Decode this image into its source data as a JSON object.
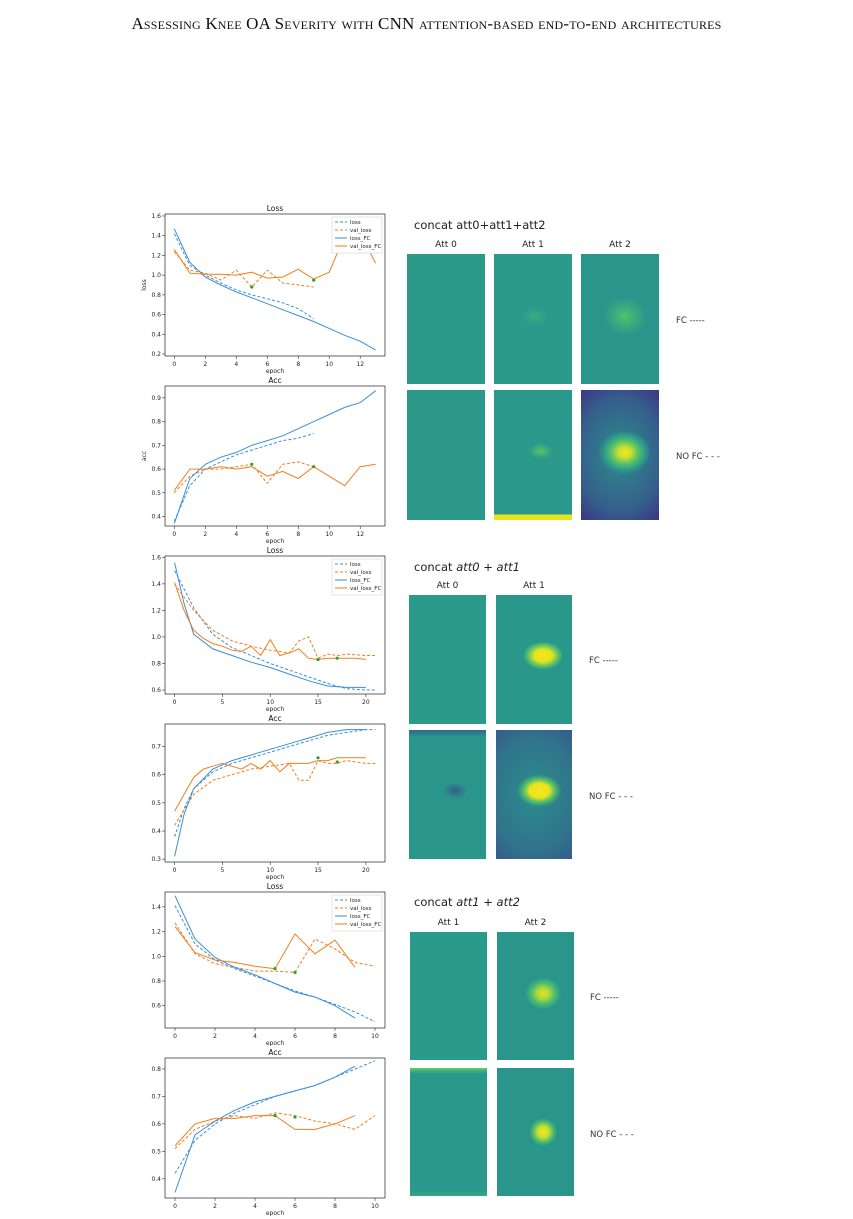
{
  "header": "Assessing Knee OA Severity with CNN attention-based end-to-end architectures",
  "colors": {
    "blue": "#3a8fd9",
    "orange": "#f07f1e",
    "green": "#2ca02c",
    "heat_base": "#2a9a8b",
    "heat_yellow": "#f4e61e",
    "heat_dark": "#3b3a86"
  },
  "groups": [
    {
      "heading_prefix": "concat ",
      "heading_main": "att0+att1+att2",
      "heading_italic": false,
      "col_headers": [
        "Att 0",
        "Att 1",
        "Att 2"
      ],
      "row_labels": [
        "FC -----",
        "NO FC - - -"
      ]
    },
    {
      "heading_prefix": "concat ",
      "heading_main": "att0 + att1",
      "heading_italic": true,
      "col_headers": [
        "Att 0",
        "Att 1"
      ],
      "row_labels": [
        "FC -----",
        "NO FC - - -"
      ]
    },
    {
      "heading_prefix": "concat ",
      "heading_main": "att1 + att2",
      "heading_italic": true,
      "col_headers": [
        "Att 1",
        "Att 2"
      ],
      "row_labels": [
        "FC -----",
        "NO FC - - -"
      ]
    }
  ],
  "chart_data": [
    {
      "type": "line",
      "title": "Loss",
      "xlabel": "epoch",
      "ylabel": "loss",
      "xlim": [
        -0.6,
        13.6
      ],
      "ylim": [
        0.18,
        1.62
      ],
      "xticks": [
        0,
        2,
        4,
        6,
        8,
        10,
        12
      ],
      "yticks": [
        0.2,
        0.4,
        0.6,
        0.8,
        1.0,
        1.2,
        1.4,
        1.6
      ],
      "legend": [
        "loss",
        "val_loss",
        "loss_FC",
        "val_loss_FC"
      ],
      "legend_position": "top-right",
      "series": [
        {
          "name": "loss",
          "dashed": true,
          "color": "blue",
          "x": [
            0,
            1,
            2,
            3,
            4,
            5,
            6,
            7,
            8,
            9
          ],
          "y": [
            1.42,
            1.1,
            1.0,
            0.92,
            0.85,
            0.8,
            0.76,
            0.72,
            0.66,
            0.56
          ]
        },
        {
          "name": "val_loss",
          "dashed": true,
          "color": "orange",
          "x": [
            0,
            1,
            2,
            3,
            4,
            5,
            6,
            7,
            8,
            9
          ],
          "y": [
            1.24,
            1.05,
            1.02,
            0.95,
            1.05,
            0.88,
            1.05,
            0.92,
            0.9,
            0.88
          ]
        },
        {
          "name": "loss_FC",
          "dashed": false,
          "color": "blue",
          "x": [
            0,
            1,
            2,
            3,
            4,
            5,
            6,
            7,
            8,
            9,
            10,
            11,
            12,
            13
          ],
          "y": [
            1.47,
            1.13,
            0.98,
            0.9,
            0.83,
            0.77,
            0.71,
            0.65,
            0.59,
            0.53,
            0.46,
            0.39,
            0.33,
            0.24
          ]
        },
        {
          "name": "val_loss_FC",
          "dashed": false,
          "color": "orange",
          "x": [
            0,
            1,
            2,
            3,
            4,
            5,
            6,
            7,
            8,
            9,
            10,
            11,
            12,
            13
          ],
          "y": [
            1.26,
            1.02,
            1.01,
            1.01,
            1.0,
            1.03,
            0.97,
            0.98,
            1.06,
            0.96,
            1.03,
            1.4,
            1.42,
            1.12
          ]
        }
      ],
      "markers": [
        {
          "x": 5,
          "y": 0.88
        },
        {
          "x": 9,
          "y": 0.95
        }
      ]
    },
    {
      "type": "line",
      "title": "Acc",
      "xlabel": "epoch",
      "ylabel": "acc",
      "xlim": [
        -0.6,
        13.6
      ],
      "ylim": [
        0.36,
        0.95
      ],
      "xticks": [
        0,
        2,
        4,
        6,
        8,
        10,
        12
      ],
      "yticks": [
        0.4,
        0.5,
        0.6,
        0.7,
        0.8,
        0.9
      ],
      "series": [
        {
          "name": "loss",
          "dashed": true,
          "color": "blue",
          "x": [
            0,
            1,
            2,
            3,
            4,
            5,
            6,
            7,
            8,
            9
          ],
          "y": [
            0.38,
            0.53,
            0.6,
            0.63,
            0.66,
            0.68,
            0.7,
            0.72,
            0.73,
            0.75
          ]
        },
        {
          "name": "val_loss",
          "dashed": true,
          "color": "orange",
          "x": [
            0,
            1,
            2,
            3,
            4,
            5,
            6,
            7,
            8,
            9
          ],
          "y": [
            0.5,
            0.57,
            0.6,
            0.6,
            0.61,
            0.62,
            0.54,
            0.62,
            0.63,
            0.61
          ]
        },
        {
          "name": "loss_FC",
          "dashed": false,
          "color": "blue",
          "x": [
            0,
            1,
            2,
            3,
            4,
            5,
            6,
            7,
            8,
            9,
            10,
            11,
            12,
            13
          ],
          "y": [
            0.37,
            0.56,
            0.62,
            0.65,
            0.67,
            0.7,
            0.72,
            0.74,
            0.77,
            0.8,
            0.83,
            0.86,
            0.88,
            0.93
          ]
        },
        {
          "name": "val_loss_FC",
          "dashed": false,
          "color": "orange",
          "x": [
            0,
            1,
            2,
            3,
            4,
            5,
            6,
            7,
            8,
            9,
            10,
            11,
            12,
            13
          ],
          "y": [
            0.51,
            0.6,
            0.6,
            0.61,
            0.6,
            0.61,
            0.57,
            0.59,
            0.56,
            0.61,
            0.57,
            0.53,
            0.61,
            0.62
          ]
        }
      ],
      "markers": [
        {
          "x": 5,
          "y": 0.62
        },
        {
          "x": 9,
          "y": 0.61
        }
      ]
    },
    {
      "type": "line",
      "title": "Loss",
      "xlabel": "epoch",
      "ylabel": "",
      "xlim": [
        -1,
        22
      ],
      "ylim": [
        0.57,
        1.61
      ],
      "xticks": [
        0,
        5,
        10,
        15,
        20
      ],
      "yticks": [
        0.6,
        0.8,
        1.0,
        1.2,
        1.4,
        1.6
      ],
      "legend": [
        "loss",
        "val_loss",
        "loss_FC",
        "val_loss_FC"
      ],
      "legend_position": "top-right",
      "series": [
        {
          "name": "loss",
          "dashed": true,
          "color": "blue",
          "x": [
            0,
            2,
            4,
            6,
            8,
            10,
            12,
            14,
            16,
            18,
            20,
            21
          ],
          "y": [
            1.5,
            1.22,
            1.02,
            0.92,
            0.86,
            0.8,
            0.75,
            0.7,
            0.65,
            0.61,
            0.6,
            0.6
          ]
        },
        {
          "name": "val_loss",
          "dashed": true,
          "color": "orange",
          "x": [
            0,
            2,
            4,
            6,
            8,
            10,
            12,
            13,
            14,
            15,
            16,
            17,
            18,
            20,
            21
          ],
          "y": [
            1.4,
            1.2,
            1.05,
            0.97,
            0.93,
            0.9,
            0.88,
            0.97,
            1.0,
            0.84,
            0.87,
            0.86,
            0.87,
            0.86,
            0.86
          ]
        },
        {
          "name": "loss_FC",
          "dashed": false,
          "color": "blue",
          "x": [
            0,
            1,
            2,
            4,
            6,
            8,
            10,
            12,
            14,
            16,
            18,
            20
          ],
          "y": [
            1.56,
            1.25,
            1.02,
            0.91,
            0.86,
            0.81,
            0.77,
            0.72,
            0.67,
            0.63,
            0.62,
            0.62
          ]
        },
        {
          "name": "val_loss_FC",
          "dashed": false,
          "color": "orange",
          "x": [
            0,
            1,
            2,
            3,
            4,
            5,
            6,
            7,
            8,
            9,
            10,
            11,
            12,
            13,
            14,
            15,
            16,
            17,
            18,
            19,
            20
          ],
          "y": [
            1.41,
            1.2,
            1.05,
            0.99,
            0.95,
            0.93,
            0.9,
            0.89,
            0.93,
            0.86,
            0.98,
            0.86,
            0.88,
            0.91,
            0.84,
            0.83,
            0.84,
            0.84,
            0.84,
            0.84,
            0.83
          ]
        }
      ],
      "markers": [
        {
          "x": 15,
          "y": 0.83
        },
        {
          "x": 17,
          "y": 0.84
        }
      ]
    },
    {
      "type": "line",
      "title": "Acc",
      "xlabel": "epoch",
      "ylabel": "",
      "xlim": [
        -1,
        22
      ],
      "ylim": [
        0.29,
        0.78
      ],
      "xticks": [
        0,
        5,
        10,
        15,
        20
      ],
      "yticks": [
        0.3,
        0.4,
        0.5,
        0.6,
        0.7
      ],
      "series": [
        {
          "name": "loss",
          "dashed": true,
          "color": "blue",
          "x": [
            0,
            1,
            2,
            4,
            6,
            8,
            10,
            12,
            14,
            16,
            18,
            20,
            21
          ],
          "y": [
            0.38,
            0.48,
            0.55,
            0.61,
            0.64,
            0.66,
            0.68,
            0.7,
            0.72,
            0.74,
            0.75,
            0.76,
            0.76
          ]
        },
        {
          "name": "val_loss",
          "dashed": true,
          "color": "orange",
          "x": [
            0,
            2,
            4,
            6,
            8,
            10,
            12,
            13,
            14,
            15,
            16,
            17,
            18,
            20,
            21
          ],
          "y": [
            0.42,
            0.53,
            0.58,
            0.6,
            0.62,
            0.63,
            0.64,
            0.58,
            0.58,
            0.65,
            0.64,
            0.64,
            0.65,
            0.64,
            0.64
          ]
        },
        {
          "name": "loss_FC",
          "dashed": false,
          "color": "blue",
          "x": [
            0,
            1,
            2,
            4,
            6,
            8,
            10,
            12,
            14,
            16,
            18,
            20
          ],
          "y": [
            0.31,
            0.46,
            0.55,
            0.62,
            0.65,
            0.67,
            0.69,
            0.71,
            0.73,
            0.75,
            0.76,
            0.76
          ]
        },
        {
          "name": "val_loss_FC",
          "dashed": false,
          "color": "orange",
          "x": [
            0,
            1,
            2,
            3,
            4,
            5,
            6,
            7,
            8,
            9,
            10,
            11,
            12,
            13,
            14,
            15,
            16,
            17,
            18,
            19,
            20
          ],
          "y": [
            0.47,
            0.53,
            0.59,
            0.62,
            0.63,
            0.64,
            0.63,
            0.62,
            0.64,
            0.62,
            0.65,
            0.61,
            0.64,
            0.64,
            0.64,
            0.65,
            0.65,
            0.66,
            0.66,
            0.66,
            0.66
          ]
        }
      ],
      "markers": [
        {
          "x": 15,
          "y": 0.66
        },
        {
          "x": 17,
          "y": 0.645
        }
      ]
    },
    {
      "type": "line",
      "title": "Loss",
      "xlabel": "epoch",
      "ylabel": "",
      "xlim": [
        -0.5,
        10.5
      ],
      "ylim": [
        0.42,
        1.52
      ],
      "xticks": [
        0,
        2,
        4,
        6,
        8,
        10
      ],
      "yticks": [
        0.6,
        0.8,
        1.0,
        1.2,
        1.4
      ],
      "legend": [
        "loss",
        "val_loss",
        "loss_FC",
        "val_loss_FC"
      ],
      "legend_position": "top-right",
      "series": [
        {
          "name": "loss",
          "dashed": true,
          "color": "blue",
          "x": [
            0,
            1,
            2,
            3,
            4,
            5,
            6,
            7,
            8,
            9,
            10
          ],
          "y": [
            1.41,
            1.1,
            0.97,
            0.9,
            0.84,
            0.78,
            0.72,
            0.67,
            0.61,
            0.55,
            0.47
          ]
        },
        {
          "name": "val_loss",
          "dashed": true,
          "color": "orange",
          "x": [
            0,
            1,
            2,
            3,
            4,
            5,
            6,
            7,
            8,
            9,
            10
          ],
          "y": [
            1.27,
            1.02,
            0.94,
            0.91,
            0.88,
            0.88,
            0.87,
            1.14,
            1.06,
            0.95,
            0.92
          ]
        },
        {
          "name": "loss_FC",
          "dashed": false,
          "color": "blue",
          "x": [
            0,
            1,
            2,
            3,
            4,
            5,
            6,
            7,
            8,
            9
          ],
          "y": [
            1.49,
            1.14,
            0.99,
            0.91,
            0.85,
            0.78,
            0.71,
            0.67,
            0.6,
            0.5
          ]
        },
        {
          "name": "val_loss_FC",
          "dashed": false,
          "color": "orange",
          "x": [
            0,
            1,
            2,
            3,
            4,
            5,
            6,
            7,
            8,
            9
          ],
          "y": [
            1.24,
            1.03,
            0.97,
            0.95,
            0.92,
            0.9,
            1.18,
            1.02,
            1.13,
            0.91
          ]
        }
      ],
      "markers": [
        {
          "x": 5,
          "y": 0.9
        },
        {
          "x": 6,
          "y": 0.87
        }
      ]
    },
    {
      "type": "line",
      "title": "Acc",
      "xlabel": "epoch",
      "ylabel": "",
      "xlim": [
        -0.5,
        10.5
      ],
      "ylim": [
        0.33,
        0.84
      ],
      "xticks": [
        0,
        2,
        4,
        6,
        8,
        10
      ],
      "yticks": [
        0.4,
        0.5,
        0.6,
        0.7,
        0.8
      ],
      "series": [
        {
          "name": "loss",
          "dashed": true,
          "color": "blue",
          "x": [
            0,
            1,
            2,
            3,
            4,
            5,
            6,
            7,
            8,
            9,
            10
          ],
          "y": [
            0.42,
            0.54,
            0.6,
            0.64,
            0.67,
            0.7,
            0.72,
            0.74,
            0.77,
            0.8,
            0.83
          ]
        },
        {
          "name": "val_loss",
          "dashed": true,
          "color": "orange",
          "x": [
            0,
            1,
            2,
            3,
            4,
            5,
            6,
            7,
            8,
            9,
            10
          ],
          "y": [
            0.51,
            0.58,
            0.61,
            0.63,
            0.62,
            0.64,
            0.63,
            0.61,
            0.6,
            0.58,
            0.63
          ]
        },
        {
          "name": "loss_FC",
          "dashed": false,
          "color": "blue",
          "x": [
            0,
            1,
            2,
            3,
            4,
            5,
            6,
            7,
            8,
            9
          ],
          "y": [
            0.35,
            0.56,
            0.61,
            0.65,
            0.68,
            0.7,
            0.72,
            0.74,
            0.77,
            0.81
          ]
        },
        {
          "name": "val_loss_FC",
          "dashed": false,
          "color": "orange",
          "x": [
            0,
            1,
            2,
            3,
            4,
            5,
            6,
            7,
            8,
            9
          ],
          "y": [
            0.52,
            0.6,
            0.62,
            0.62,
            0.63,
            0.63,
            0.58,
            0.58,
            0.6,
            0.63
          ]
        }
      ],
      "markers": [
        {
          "x": 5,
          "y": 0.63
        },
        {
          "x": 6,
          "y": 0.625
        }
      ]
    }
  ]
}
